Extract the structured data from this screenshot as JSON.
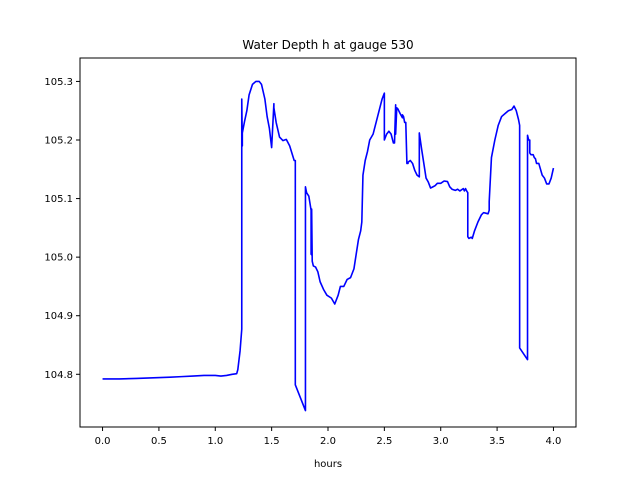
{
  "chart_data": {
    "type": "line",
    "title": "Water Depth h at gauge 530",
    "xlabel": "hours",
    "ylabel": "",
    "xlim": [
      -0.2,
      4.2
    ],
    "ylim": [
      104.71,
      105.34
    ],
    "x_ticks": [
      0.0,
      0.5,
      1.0,
      1.5,
      2.0,
      2.5,
      3.0,
      3.5,
      4.0
    ],
    "x_tick_labels": [
      "0.0",
      "0.5",
      "1.0",
      "1.5",
      "2.0",
      "2.5",
      "3.0",
      "3.5",
      "4.0"
    ],
    "y_ticks": [
      104.8,
      104.9,
      105.0,
      105.1,
      105.2,
      105.3
    ],
    "y_tick_labels": [
      "104.8",
      "104.9",
      "105.0",
      "105.1",
      "105.2",
      "105.3"
    ],
    "grid": false,
    "series": [
      {
        "color": "#0000ff",
        "x": [
          0.0,
          0.15,
          0.3,
          0.45,
          0.6,
          0.7,
          0.8,
          0.9,
          1.0,
          1.05,
          1.1,
          1.15,
          1.19,
          1.2,
          1.22,
          1.235,
          1.235,
          1.24,
          1.24,
          1.26,
          1.28,
          1.3,
          1.33,
          1.36,
          1.39,
          1.41,
          1.44,
          1.46,
          1.48,
          1.5,
          1.52,
          1.52,
          1.54,
          1.57,
          1.6,
          1.63,
          1.66,
          1.7,
          1.71,
          1.71,
          1.8,
          1.8,
          1.81,
          1.83,
          1.85,
          1.85,
          1.855,
          1.855,
          1.86,
          1.87,
          1.89,
          1.91,
          1.93,
          1.96,
          1.99,
          2.03,
          2.06,
          2.09,
          2.11,
          2.14,
          2.17,
          2.2,
          2.23,
          2.25,
          2.27,
          2.29,
          2.3,
          2.31,
          2.33,
          2.35,
          2.37,
          2.4,
          2.44,
          2.48,
          2.5,
          2.5,
          2.52,
          2.54,
          2.56,
          2.58,
          2.59,
          2.6,
          2.6,
          2.61,
          2.62,
          2.64,
          2.66,
          2.66,
          2.67,
          2.68,
          2.69,
          2.7,
          2.71,
          2.71,
          2.73,
          2.75,
          2.77,
          2.79,
          2.81,
          2.81,
          2.83,
          2.85,
          2.87,
          2.89,
          2.91,
          2.93,
          2.95,
          2.97,
          3.0,
          3.03,
          3.06,
          3.08,
          3.1,
          3.13,
          3.15,
          3.17,
          3.2,
          3.21,
          3.22,
          3.23,
          3.24,
          3.24,
          3.25,
          3.27,
          3.28,
          3.3,
          3.33,
          3.36,
          3.38,
          3.4,
          3.42,
          3.43,
          3.43,
          3.45,
          3.48,
          3.51,
          3.54,
          3.57,
          3.6,
          3.63,
          3.65,
          3.67,
          3.69,
          3.7,
          3.7,
          3.77,
          3.77,
          3.78,
          3.79,
          3.79,
          3.8,
          3.82,
          3.83,
          3.84,
          3.85,
          3.87,
          3.9,
          3.92,
          3.94,
          3.96,
          3.98,
          4.0
        ],
        "y": [
          104.792,
          104.792,
          104.793,
          104.794,
          104.795,
          104.796,
          104.797,
          104.798,
          104.798,
          104.797,
          104.798,
          104.8,
          104.801,
          104.808,
          104.84,
          104.877,
          105.27,
          105.19,
          105.212,
          105.232,
          105.25,
          105.277,
          105.295,
          105.3,
          105.3,
          105.295,
          105.27,
          105.24,
          105.22,
          105.187,
          105.262,
          105.255,
          105.23,
          105.205,
          105.199,
          105.201,
          105.19,
          105.165,
          105.165,
          104.782,
          104.738,
          105.12,
          105.11,
          105.104,
          105.08,
          105.005,
          105.004,
          105.082,
          104.993,
          104.985,
          104.983,
          104.975,
          104.958,
          104.945,
          104.935,
          104.93,
          104.92,
          104.935,
          104.95,
          104.95,
          104.962,
          104.965,
          104.98,
          105.005,
          105.03,
          105.045,
          105.06,
          105.14,
          105.165,
          105.18,
          105.2,
          105.21,
          105.24,
          105.27,
          105.28,
          105.2,
          105.21,
          105.215,
          105.21,
          105.195,
          105.195,
          105.26,
          105.21,
          105.255,
          105.253,
          105.245,
          105.238,
          105.243,
          105.24,
          105.23,
          105.23,
          105.16,
          105.16,
          105.162,
          105.165,
          105.16,
          105.148,
          105.14,
          105.137,
          105.212,
          105.185,
          105.16,
          105.135,
          105.128,
          105.118,
          105.12,
          105.122,
          105.126,
          105.126,
          105.13,
          105.129,
          105.12,
          105.116,
          105.114,
          105.116,
          105.113,
          105.117,
          105.113,
          105.117,
          105.113,
          105.11,
          105.035,
          105.032,
          105.034,
          105.032,
          105.045,
          105.06,
          105.072,
          105.076,
          105.075,
          105.074,
          105.08,
          105.095,
          105.17,
          105.2,
          105.225,
          105.24,
          105.245,
          105.25,
          105.252,
          105.258,
          105.25,
          105.235,
          105.225,
          104.845,
          104.825,
          105.208,
          105.2,
          105.2,
          105.178,
          105.175,
          105.175,
          105.17,
          105.168,
          105.16,
          105.16,
          105.14,
          105.135,
          105.125,
          105.125,
          105.135,
          105.152
        ]
      }
    ]
  }
}
